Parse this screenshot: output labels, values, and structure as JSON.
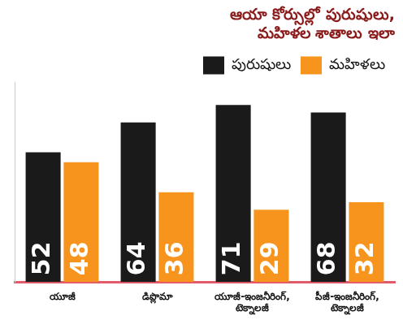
{
  "chart_data": {
    "type": "bar",
    "title": "ఆయా కోర్సుల్లో పురుషులు, మహిళల శాతాలు ఇలా",
    "categories": [
      "యూజీ",
      "డిప్లొమా",
      "యూజీ-ఇంజనీరింగ్, టెక్నాలజీ",
      "పీజీ-ఇంజనీరింగ్, టెక్నాలజీ"
    ],
    "series": [
      {
        "name": "పురుషులు",
        "color": "#1a1a1a",
        "values": [
          52,
          64,
          71,
          68
        ]
      },
      {
        "name": "మహిళలు",
        "color": "#f7941d",
        "values": [
          48,
          36,
          29,
          32
        ]
      }
    ],
    "ylim": [
      0,
      80
    ],
    "grid": false,
    "legend": "top-right",
    "data_labels": true,
    "tick_labels": "x"
  }
}
